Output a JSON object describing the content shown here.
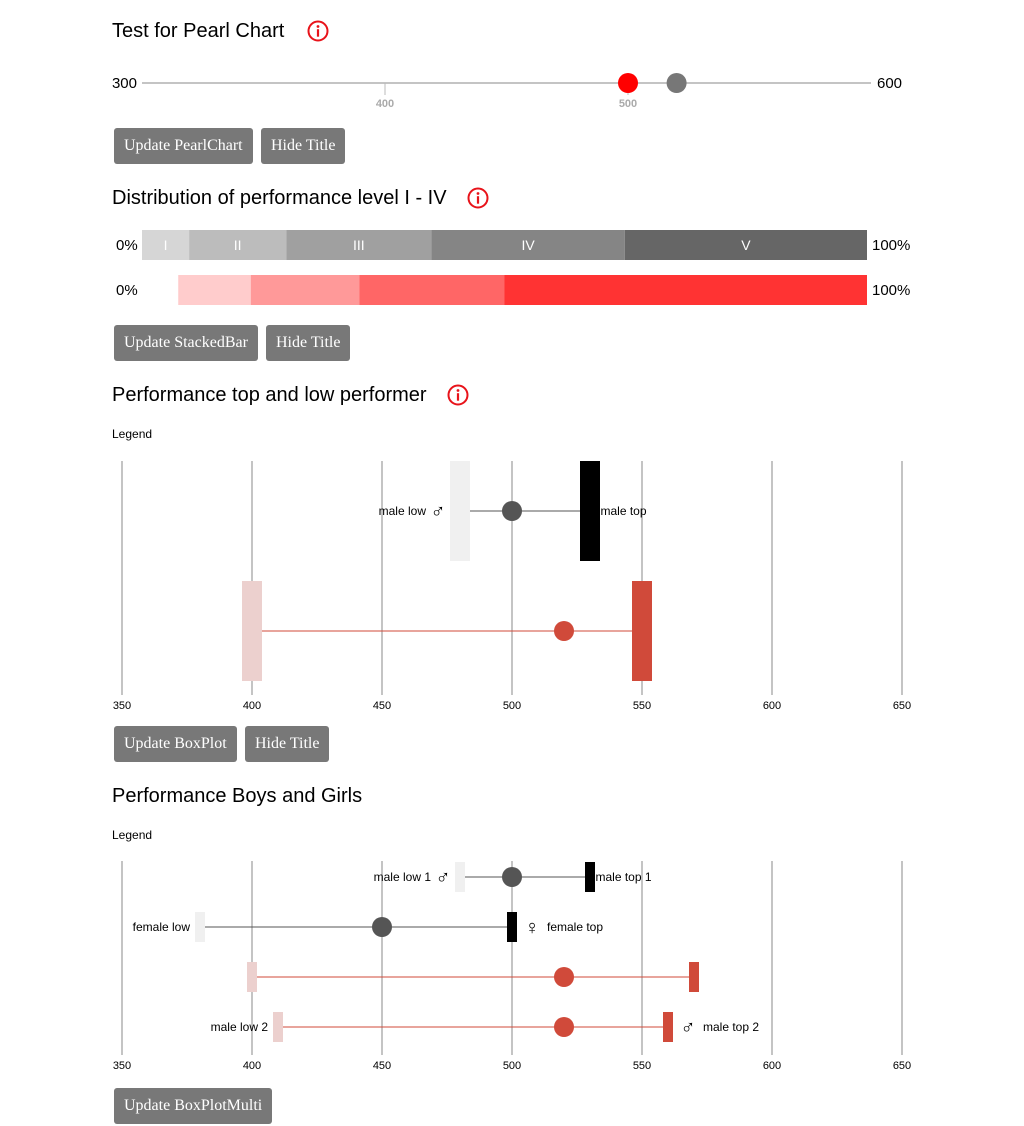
{
  "colors": {
    "button": "#787878",
    "info": "#e8131a",
    "red": "#ff0000",
    "grey_dot": "#777777",
    "dark_dot": "#555555",
    "box_red": "#d04a3a",
    "box_red_light": "#ecd0ce"
  },
  "pearl": {
    "title": "Test for Pearl Chart",
    "info_icon": "info-icon",
    "button_update": "Update PearlChart",
    "button_hide": "Hide Title"
  },
  "stacked": {
    "title": "Distribution of performance level I - IV",
    "info_icon": "info-icon",
    "button_update": "Update StackedBar",
    "button_hide": "Hide Title"
  },
  "boxplot": {
    "title": "Performance top and low performer",
    "info_icon": "info-icon",
    "legend": "Legend",
    "button_update": "Update BoxPlot",
    "button_hide": "Hide Title"
  },
  "multi": {
    "title": "Performance Boys and Girls",
    "legend": "Legend",
    "button_update": "Update BoxPlotMulti"
  },
  "chart_data": [
    {
      "type": "scatter",
      "name": "pearl-chart",
      "min_label": "300",
      "max_label": "600",
      "xlim": [
        300,
        600
      ],
      "ticks": [
        400,
        500
      ],
      "tick_labels": [
        "400",
        "500"
      ],
      "points": [
        {
          "x": 500,
          "color": "#ff0000"
        },
        {
          "x": 520,
          "color": "#777777"
        }
      ]
    },
    {
      "type": "bar",
      "name": "stacked-bar-grey",
      "left_label": "0%",
      "right_label": "100%",
      "stacked": true,
      "start": 0,
      "segments": [
        {
          "label": "I",
          "value": 6.5,
          "color": "#d6d6d6"
        },
        {
          "label": "II",
          "value": 13.4,
          "color": "#bcbcbc"
        },
        {
          "label": "III",
          "value": 20,
          "color": "#a0a0a0"
        },
        {
          "label": "IV",
          "value": 26.7,
          "color": "#858585"
        },
        {
          "label": "V",
          "value": 33.4,
          "color": "#666666"
        }
      ]
    },
    {
      "type": "bar",
      "name": "stacked-bar-red",
      "left_label": "0%",
      "right_label": "100%",
      "stacked": true,
      "start": 5,
      "segments": [
        {
          "label": "",
          "value": 10,
          "color": "#ffcccc"
        },
        {
          "label": "",
          "value": 15,
          "color": "#ff9999"
        },
        {
          "label": "",
          "value": 20,
          "color": "#ff6666"
        },
        {
          "label": "",
          "value": 50,
          "color": "#ff3333"
        }
      ]
    },
    {
      "type": "scatter",
      "name": "boxplot",
      "xlim": [
        350,
        650
      ],
      "ticks": [
        350,
        400,
        450,
        500,
        550,
        600,
        650
      ],
      "tick_labels": [
        "350",
        "400",
        "450",
        "500",
        "550",
        "600",
        "650"
      ],
      "rows": [
        {
          "low": 480,
          "mean": 500,
          "high": 530,
          "low_color": "#f0f0f0",
          "high_color": "#000000",
          "dot_color": "#555555",
          "line_color": "#555555",
          "low_label": "male low",
          "high_label": "male top",
          "symbol": "♂"
        },
        {
          "low": 400,
          "mean": 520,
          "high": 550,
          "low_color": "#ecd0ce",
          "high_color": "#d04a3a",
          "dot_color": "#d04a3a",
          "line_color": "#d04a3a",
          "low_label": "",
          "high_label": "",
          "symbol": ""
        }
      ]
    },
    {
      "type": "scatter",
      "name": "boxplot-multi",
      "xlim": [
        350,
        650
      ],
      "ticks": [
        350,
        400,
        450,
        500,
        550,
        600,
        650
      ],
      "tick_labels": [
        "350",
        "400",
        "450",
        "500",
        "550",
        "600",
        "650"
      ],
      "rows": [
        {
          "low": 480,
          "mean": 500,
          "high": 530,
          "low_color": "#f0f0f0",
          "high_color": "#000000",
          "dot_color": "#555555",
          "line_color": "#555555",
          "low_label": "male low 1",
          "high_label": "male top 1",
          "symbol": "♂",
          "symbol_side": "left"
        },
        {
          "low": 380,
          "mean": 450,
          "high": 500,
          "low_color": "#f0f0f0",
          "high_color": "#000000",
          "dot_color": "#555555",
          "line_color": "#555555",
          "low_label": "female low",
          "high_label": "female top",
          "symbol": "♀",
          "symbol_side": "right"
        },
        {
          "low": 400,
          "mean": 520,
          "high": 570,
          "low_color": "#ecd0ce",
          "high_color": "#d04a3a",
          "dot_color": "#d04a3a",
          "line_color": "#d04a3a",
          "low_label": "",
          "high_label": "",
          "symbol": "",
          "symbol_side": ""
        },
        {
          "low": 410,
          "mean": 520,
          "high": 560,
          "low_color": "#ecd0ce",
          "high_color": "#d04a3a",
          "dot_color": "#d04a3a",
          "line_color": "#d04a3a",
          "low_label": "male low 2",
          "high_label": "male top 2",
          "symbol": "♂",
          "symbol_side": "right"
        }
      ]
    }
  ]
}
